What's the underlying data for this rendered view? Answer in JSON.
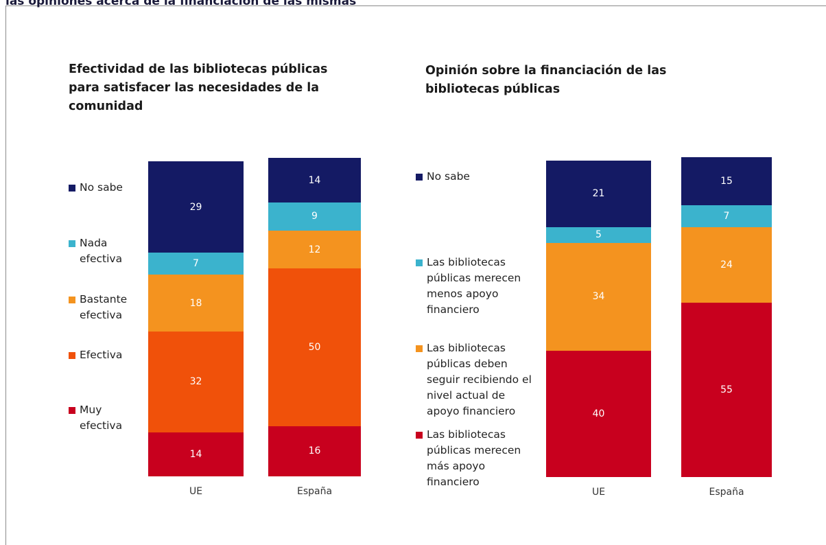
{
  "caption": "las opiniones acerca de la financiación de las mismas",
  "chart_data": [
    {
      "type": "stacked_bar",
      "title": "Efectividad de las bibliotecas públicas para satisfacer las necesidades de la comunidad",
      "categories": [
        "UE",
        "España"
      ],
      "series": [
        {
          "name": "Muy efectiva",
          "color": "#c8001e",
          "values": [
            14,
            16
          ]
        },
        {
          "name": "Efectiva",
          "color": "#f0510a",
          "values": [
            32,
            50
          ]
        },
        {
          "name": "Bastante efectiva",
          "color": "#f4931f",
          "values": [
            18,
            12
          ]
        },
        {
          "name": "Nada efectiva",
          "color": "#3bb3cd",
          "values": [
            7,
            9
          ]
        },
        {
          "name": "No sabe",
          "color": "#141a64",
          "values": [
            29,
            14
          ]
        }
      ]
    },
    {
      "type": "stacked_bar",
      "title": "Opinión sobre la financiación de las bibliotecas públicas",
      "categories": [
        "UE",
        "España"
      ],
      "series": [
        {
          "name": "Las bibliotecas públicas merecen más apoyo financiero",
          "color": "#c8001e",
          "values": [
            40,
            55
          ]
        },
        {
          "name": "Las bibliotecas públicas deben seguir recibiendo el nivel actual de apoyo financiero",
          "color": "#f4931f",
          "values": [
            34,
            24
          ]
        },
        {
          "name": "Las bibliotecas públicas merecen menos apoyo financiero",
          "color": "#3bb3cd",
          "values": [
            5,
            7
          ]
        },
        {
          "name": "No sabe",
          "color": "#141a64",
          "values": [
            21,
            15
          ]
        }
      ]
    }
  ]
}
